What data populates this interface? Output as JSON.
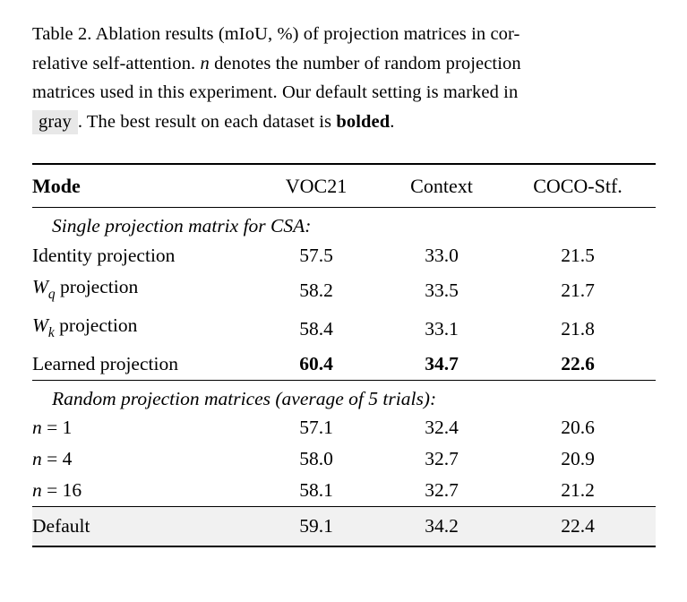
{
  "colors": {
    "highlight-bg": "#e8e8e8",
    "default-row-bg": "#f1f1f1"
  },
  "caption": {
    "line1": "Table 2. Ablation results (mIoU, %) of projection matrices in cor-",
    "line2_pre": "relative self-attention. ",
    "line2_math": "n",
    "line2_post": " denotes the number of random projection",
    "line3": "matrices used in this experiment. Our default setting is marked in",
    "line4_highlight": "gray",
    "line4_mid": ". The best result on each dataset is ",
    "line4_bold": "bolded",
    "line4_end": "."
  },
  "table": {
    "headers": {
      "mode": "Mode",
      "voc21": "VOC21",
      "context": "Context",
      "coco": "COCO-Stf."
    },
    "section1": {
      "title": "Single projection matrix for CSA:",
      "rows": [
        {
          "mode": "Identity projection",
          "voc21": "57.5",
          "context": "33.0",
          "coco": "21.5"
        },
        {
          "mode_w": "W",
          "mode_sub": "q",
          "mode_rest": " projection",
          "voc21": "58.2",
          "context": "33.5",
          "coco": "21.7"
        },
        {
          "mode_w": "W",
          "mode_sub": "k",
          "mode_rest": " projection",
          "voc21": "58.4",
          "context": "33.1",
          "coco": "21.8"
        },
        {
          "mode": "Learned projection",
          "voc21": "60.4",
          "context": "34.7",
          "coco": "22.6"
        }
      ]
    },
    "section2": {
      "title": "Random projection matrices (average of 5 trials):",
      "rows": [
        {
          "mode_math": "n",
          "mode_rest": " = 1",
          "voc21": "57.1",
          "context": "32.4",
          "coco": "20.6"
        },
        {
          "mode_math": "n",
          "mode_rest": " = 4",
          "voc21": "58.0",
          "context": "32.7",
          "coco": "20.9"
        },
        {
          "mode_math": "n",
          "mode_rest": " = 16",
          "voc21": "58.1",
          "context": "32.7",
          "coco": "21.2"
        }
      ]
    },
    "default_row": {
      "mode": "Default",
      "voc21": "59.1",
      "context": "34.2",
      "coco": "22.4"
    }
  }
}
